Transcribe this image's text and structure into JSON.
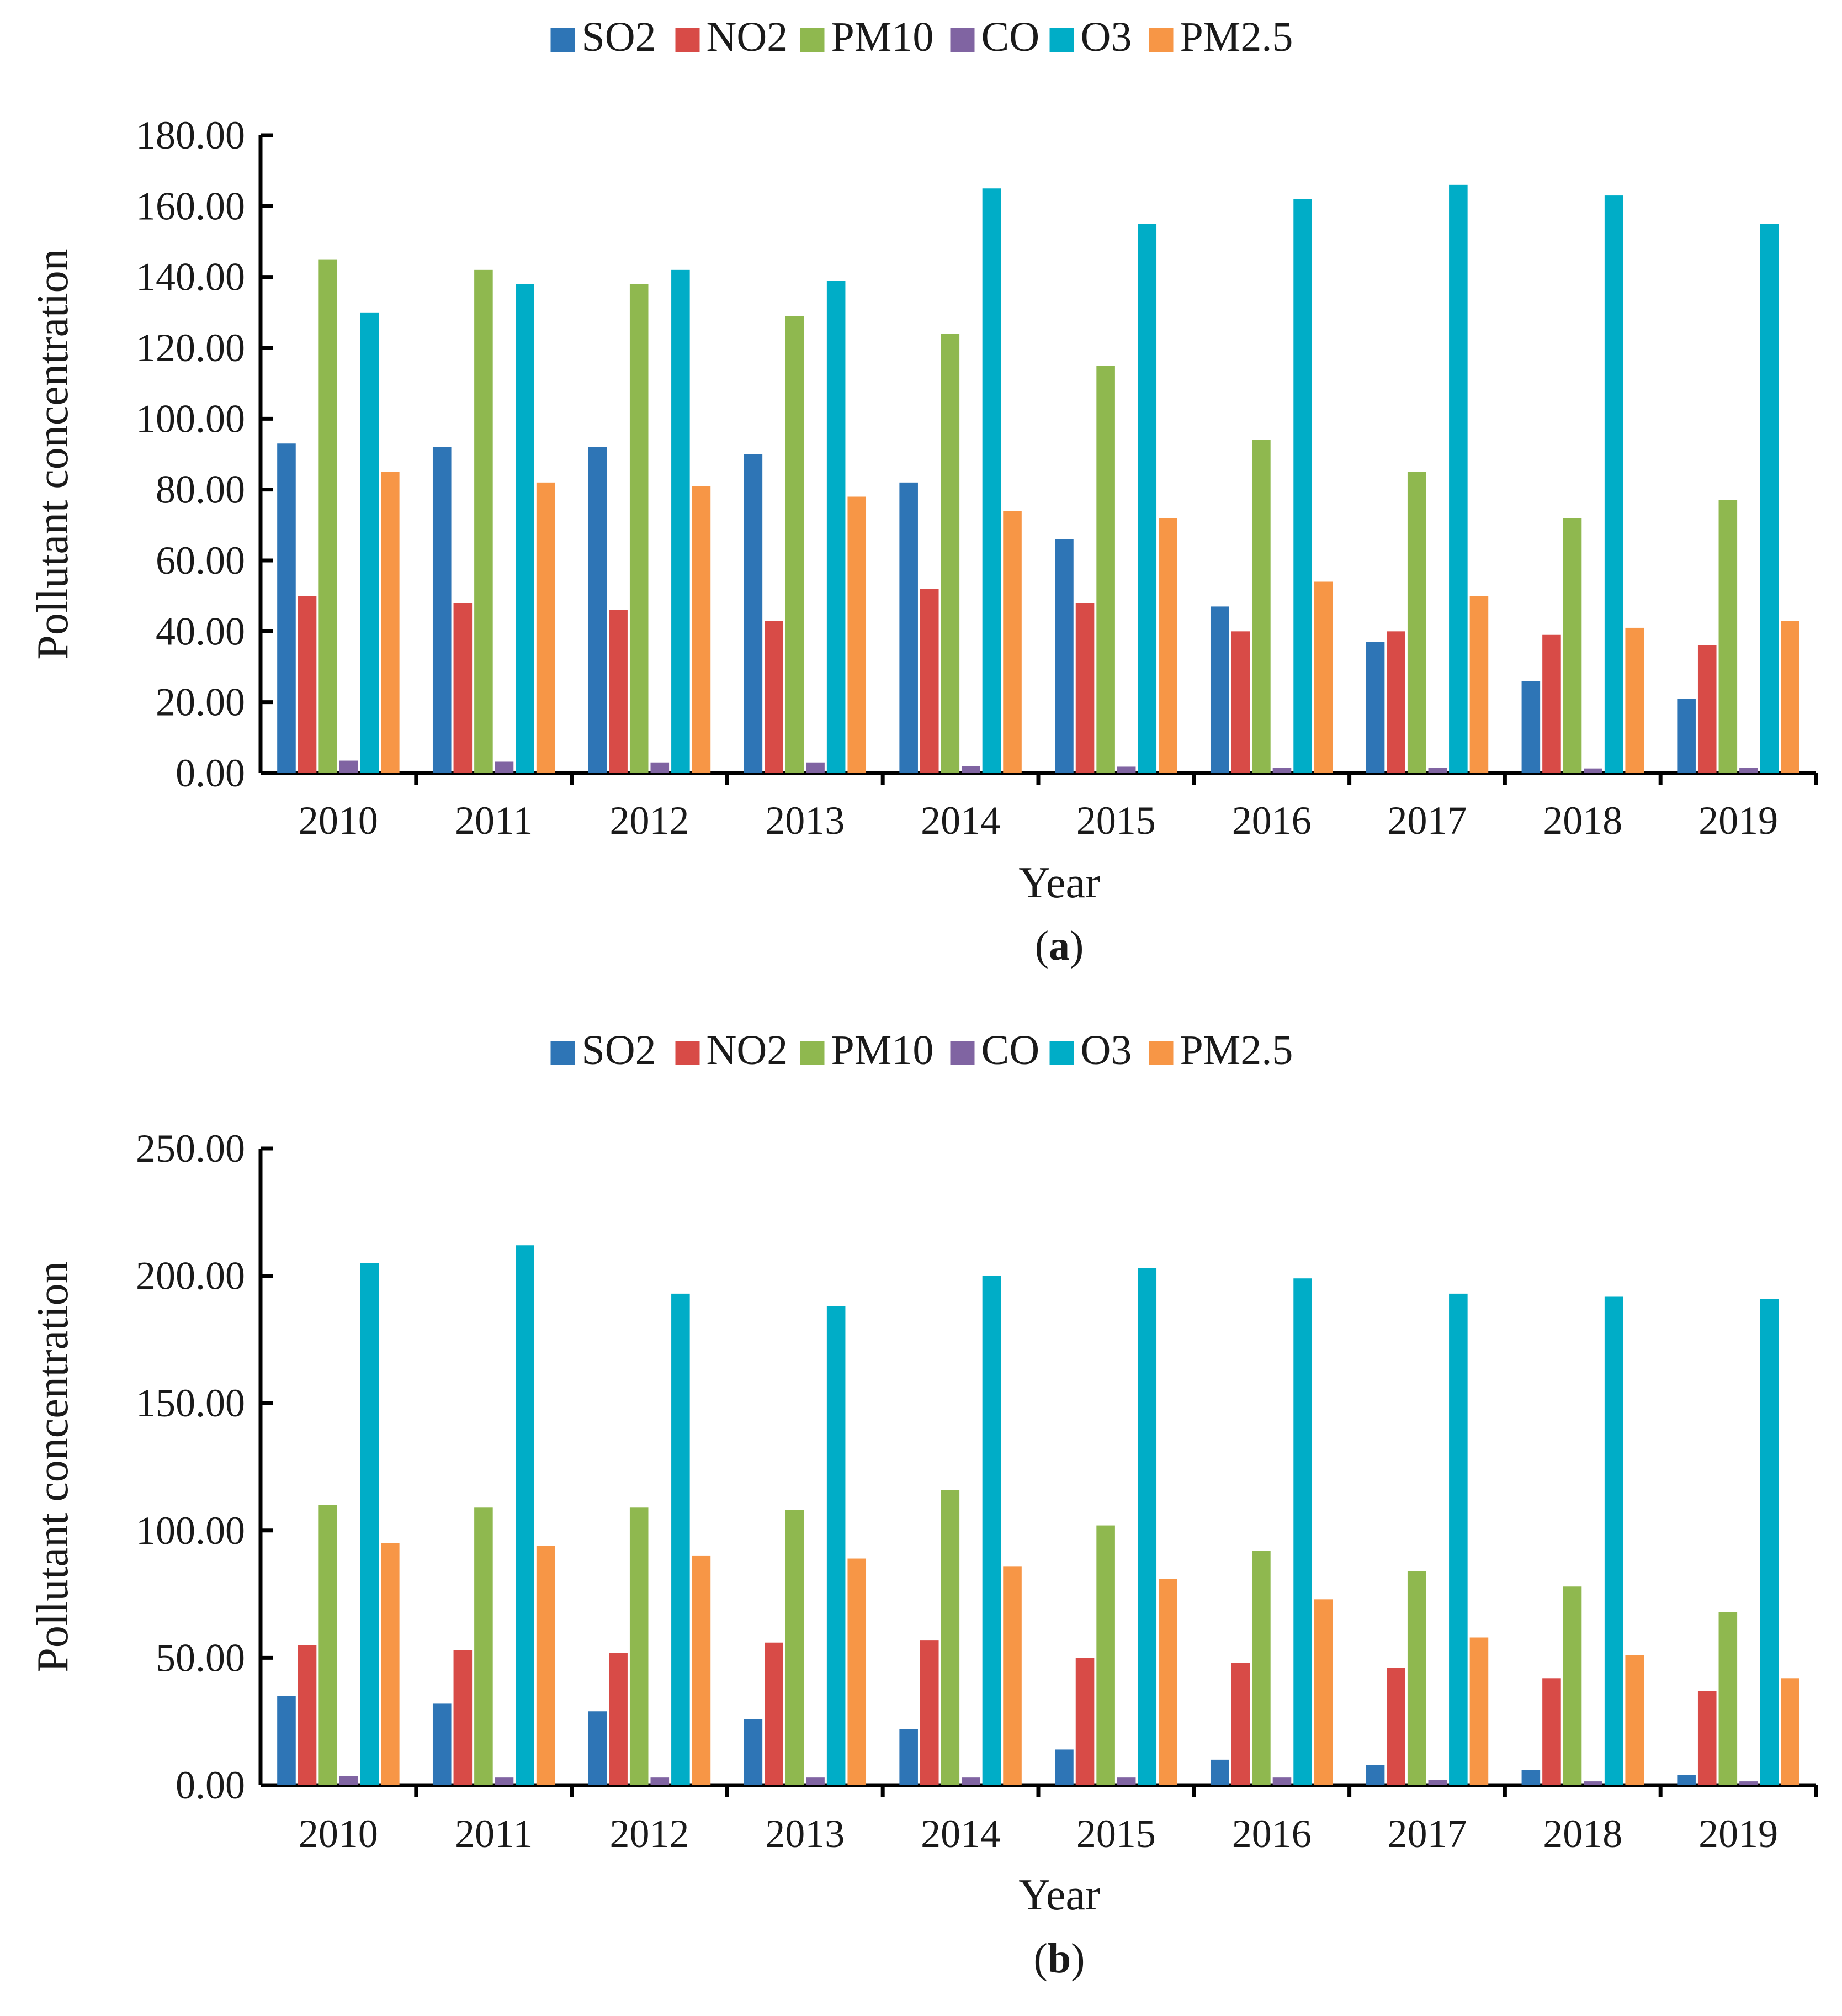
{
  "chart_data": [
    {
      "type": "bar",
      "panel_label": "a",
      "title": "",
      "xlabel": "Year",
      "ylabel": "Pollutant concentration",
      "ylim": [
        0,
        180
      ],
      "y_ticks": [
        "0.00",
        "20.00",
        "40.00",
        "60.00",
        "80.00",
        "100.00",
        "120.00",
        "140.00",
        "160.00",
        "180.00"
      ],
      "legend_position": "top-center",
      "grid": false,
      "categories": [
        "2010",
        "2011",
        "2012",
        "2013",
        "2014",
        "2015",
        "2016",
        "2017",
        "2018",
        "2019"
      ],
      "series": [
        {
          "name": "SO2",
          "color": "#2e75b6",
          "values": [
            93,
            92,
            92,
            90,
            82,
            66,
            47,
            37,
            26,
            21
          ]
        },
        {
          "name": "NO2",
          "color": "#d84b47",
          "values": [
            50,
            48,
            46,
            43,
            52,
            48,
            40,
            40,
            39,
            36
          ]
        },
        {
          "name": "PM10",
          "color": "#8fb84f",
          "values": [
            145,
            142,
            138,
            129,
            124,
            115,
            94,
            85,
            72,
            77
          ]
        },
        {
          "name": "CO",
          "color": "#8064a2",
          "values": [
            3.5,
            3.2,
            3.0,
            3.0,
            2.0,
            1.8,
            1.5,
            1.5,
            1.3,
            1.5
          ]
        },
        {
          "name": "O3",
          "color": "#00adc7",
          "values": [
            130,
            138,
            142,
            139,
            165,
            155,
            162,
            166,
            163,
            155
          ]
        },
        {
          "name": "PM2.5",
          "color": "#f79646",
          "values": [
            85,
            82,
            81,
            78,
            74,
            72,
            54,
            50,
            41,
            43
          ]
        }
      ]
    },
    {
      "type": "bar",
      "panel_label": "b",
      "title": "",
      "xlabel": "Year",
      "ylabel": "Pollutant concentration",
      "ylim": [
        0,
        250
      ],
      "y_ticks": [
        "0.00",
        "50.00",
        "100.00",
        "150.00",
        "200.00",
        "250.00"
      ],
      "legend_position": "top-center",
      "grid": false,
      "categories": [
        "2010",
        "2011",
        "2012",
        "2013",
        "2014",
        "2015",
        "2016",
        "2017",
        "2018",
        "2019"
      ],
      "series": [
        {
          "name": "SO2",
          "color": "#2e75b6",
          "values": [
            35,
            32,
            29,
            26,
            22,
            14,
            10,
            8,
            6,
            4
          ]
        },
        {
          "name": "NO2",
          "color": "#d84b47",
          "values": [
            55,
            53,
            52,
            56,
            57,
            50,
            48,
            46,
            42,
            37
          ]
        },
        {
          "name": "PM10",
          "color": "#8fb84f",
          "values": [
            110,
            109,
            109,
            108,
            116,
            102,
            92,
            84,
            78,
            68
          ]
        },
        {
          "name": "CO",
          "color": "#8064a2",
          "values": [
            3.5,
            3.0,
            3.0,
            3.0,
            3.0,
            3.0,
            3.0,
            2.0,
            1.5,
            1.5
          ]
        },
        {
          "name": "O3",
          "color": "#00adc7",
          "values": [
            205,
            212,
            193,
            188,
            200,
            203,
            199,
            193,
            192,
            191
          ]
        },
        {
          "name": "PM2.5",
          "color": "#f79646",
          "values": [
            95,
            94,
            90,
            89,
            86,
            81,
            73,
            58,
            51,
            42
          ]
        }
      ]
    }
  ]
}
